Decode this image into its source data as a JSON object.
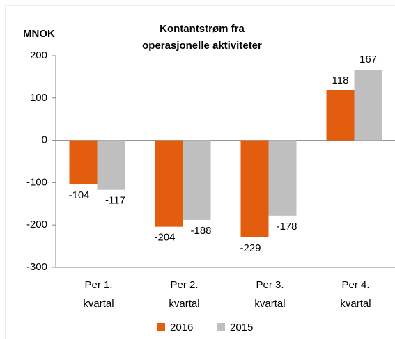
{
  "chart_data": {
    "type": "bar",
    "title": "Kontantstrøm fra operasjonelle aktiviteter",
    "y_label": "MNOK",
    "categories": [
      "Per 1. kvartal",
      "Per 2. kvartal",
      "Per 3. kvartal",
      "Per 4. kvartal"
    ],
    "series": [
      {
        "name": "2016",
        "color": "#e35d0e",
        "values": [
          -104,
          -204,
          -229,
          118
        ]
      },
      {
        "name": "2015",
        "color": "#bfbfbf",
        "values": [
          -117,
          -188,
          -178,
          167
        ]
      }
    ],
    "ylim": [
      -300,
      200
    ],
    "yticks": [
      -300,
      -200,
      -100,
      0,
      100,
      200
    ],
    "grid": false,
    "legend": "bottom"
  }
}
